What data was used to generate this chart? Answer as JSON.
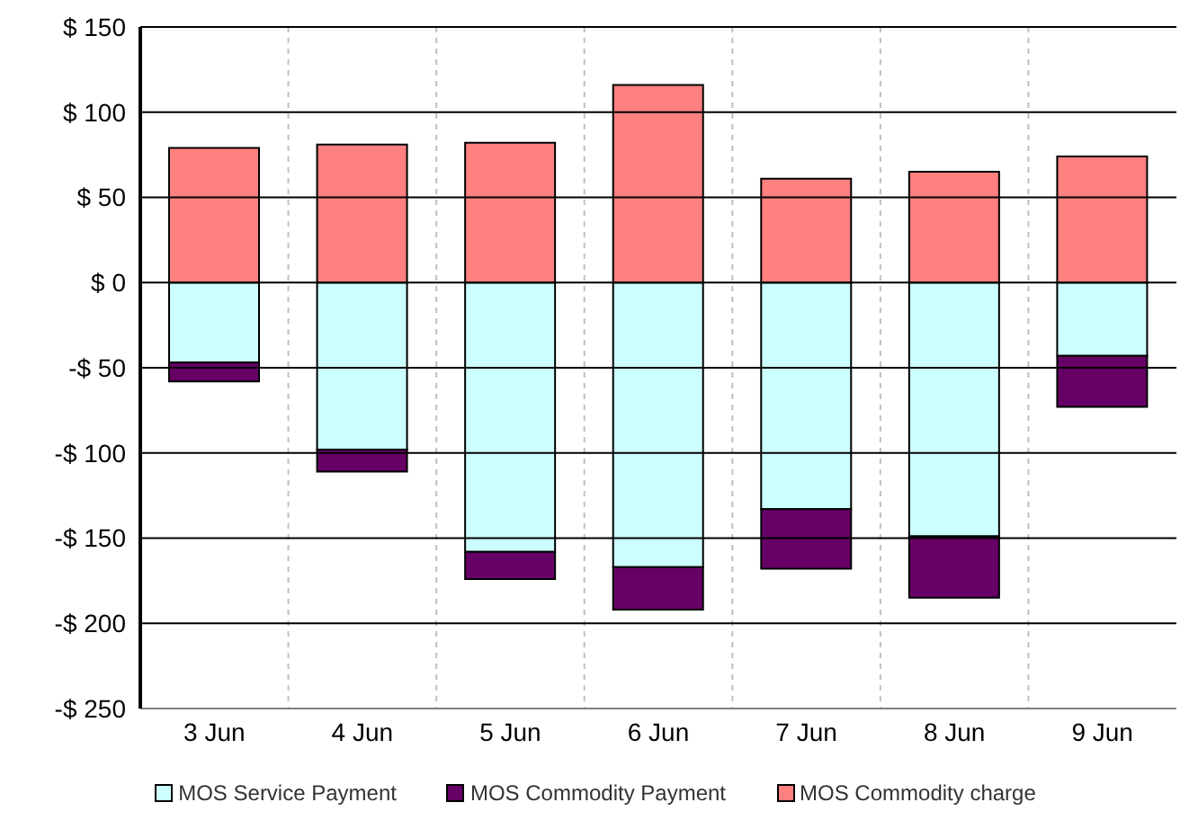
{
  "chart_data": {
    "type": "bar",
    "stacked": true,
    "categories": [
      "3 Jun",
      "4 Jun",
      "5 Jun",
      "6 Jun",
      "7 Jun",
      "8 Jun",
      "9 Jun"
    ],
    "series": [
      {
        "name": "MOS Service Payment",
        "color": "#ccffff",
        "values": [
          -47,
          -98,
          -158,
          -167,
          -133,
          -149,
          -43
        ]
      },
      {
        "name": "MOS Commodity Payment",
        "color": "#660066",
        "values": [
          -11,
          -13,
          -16,
          -25,
          -35,
          -36,
          -30
        ]
      },
      {
        "name": "MOS Commodity charge",
        "color": "#ff8080",
        "values": [
          79,
          81,
          82,
          116,
          61,
          65,
          74
        ]
      }
    ],
    "ylim": [
      -250,
      150
    ],
    "yticks": [
      {
        "value": -250,
        "label": "-$ 250"
      },
      {
        "value": -200,
        "label": "-$ 200"
      },
      {
        "value": -150,
        "label": "-$ 150"
      },
      {
        "value": -100,
        "label": "-$ 100"
      },
      {
        "value": -50,
        "label": "-$ 50"
      },
      {
        "value": 0,
        "label": "$ 0"
      },
      {
        "value": 50,
        "label": "$ 50"
      },
      {
        "value": 100,
        "label": "$ 100"
      },
      {
        "value": 150,
        "label": "$ 150"
      }
    ],
    "grid": true,
    "legend": "bottom"
  }
}
